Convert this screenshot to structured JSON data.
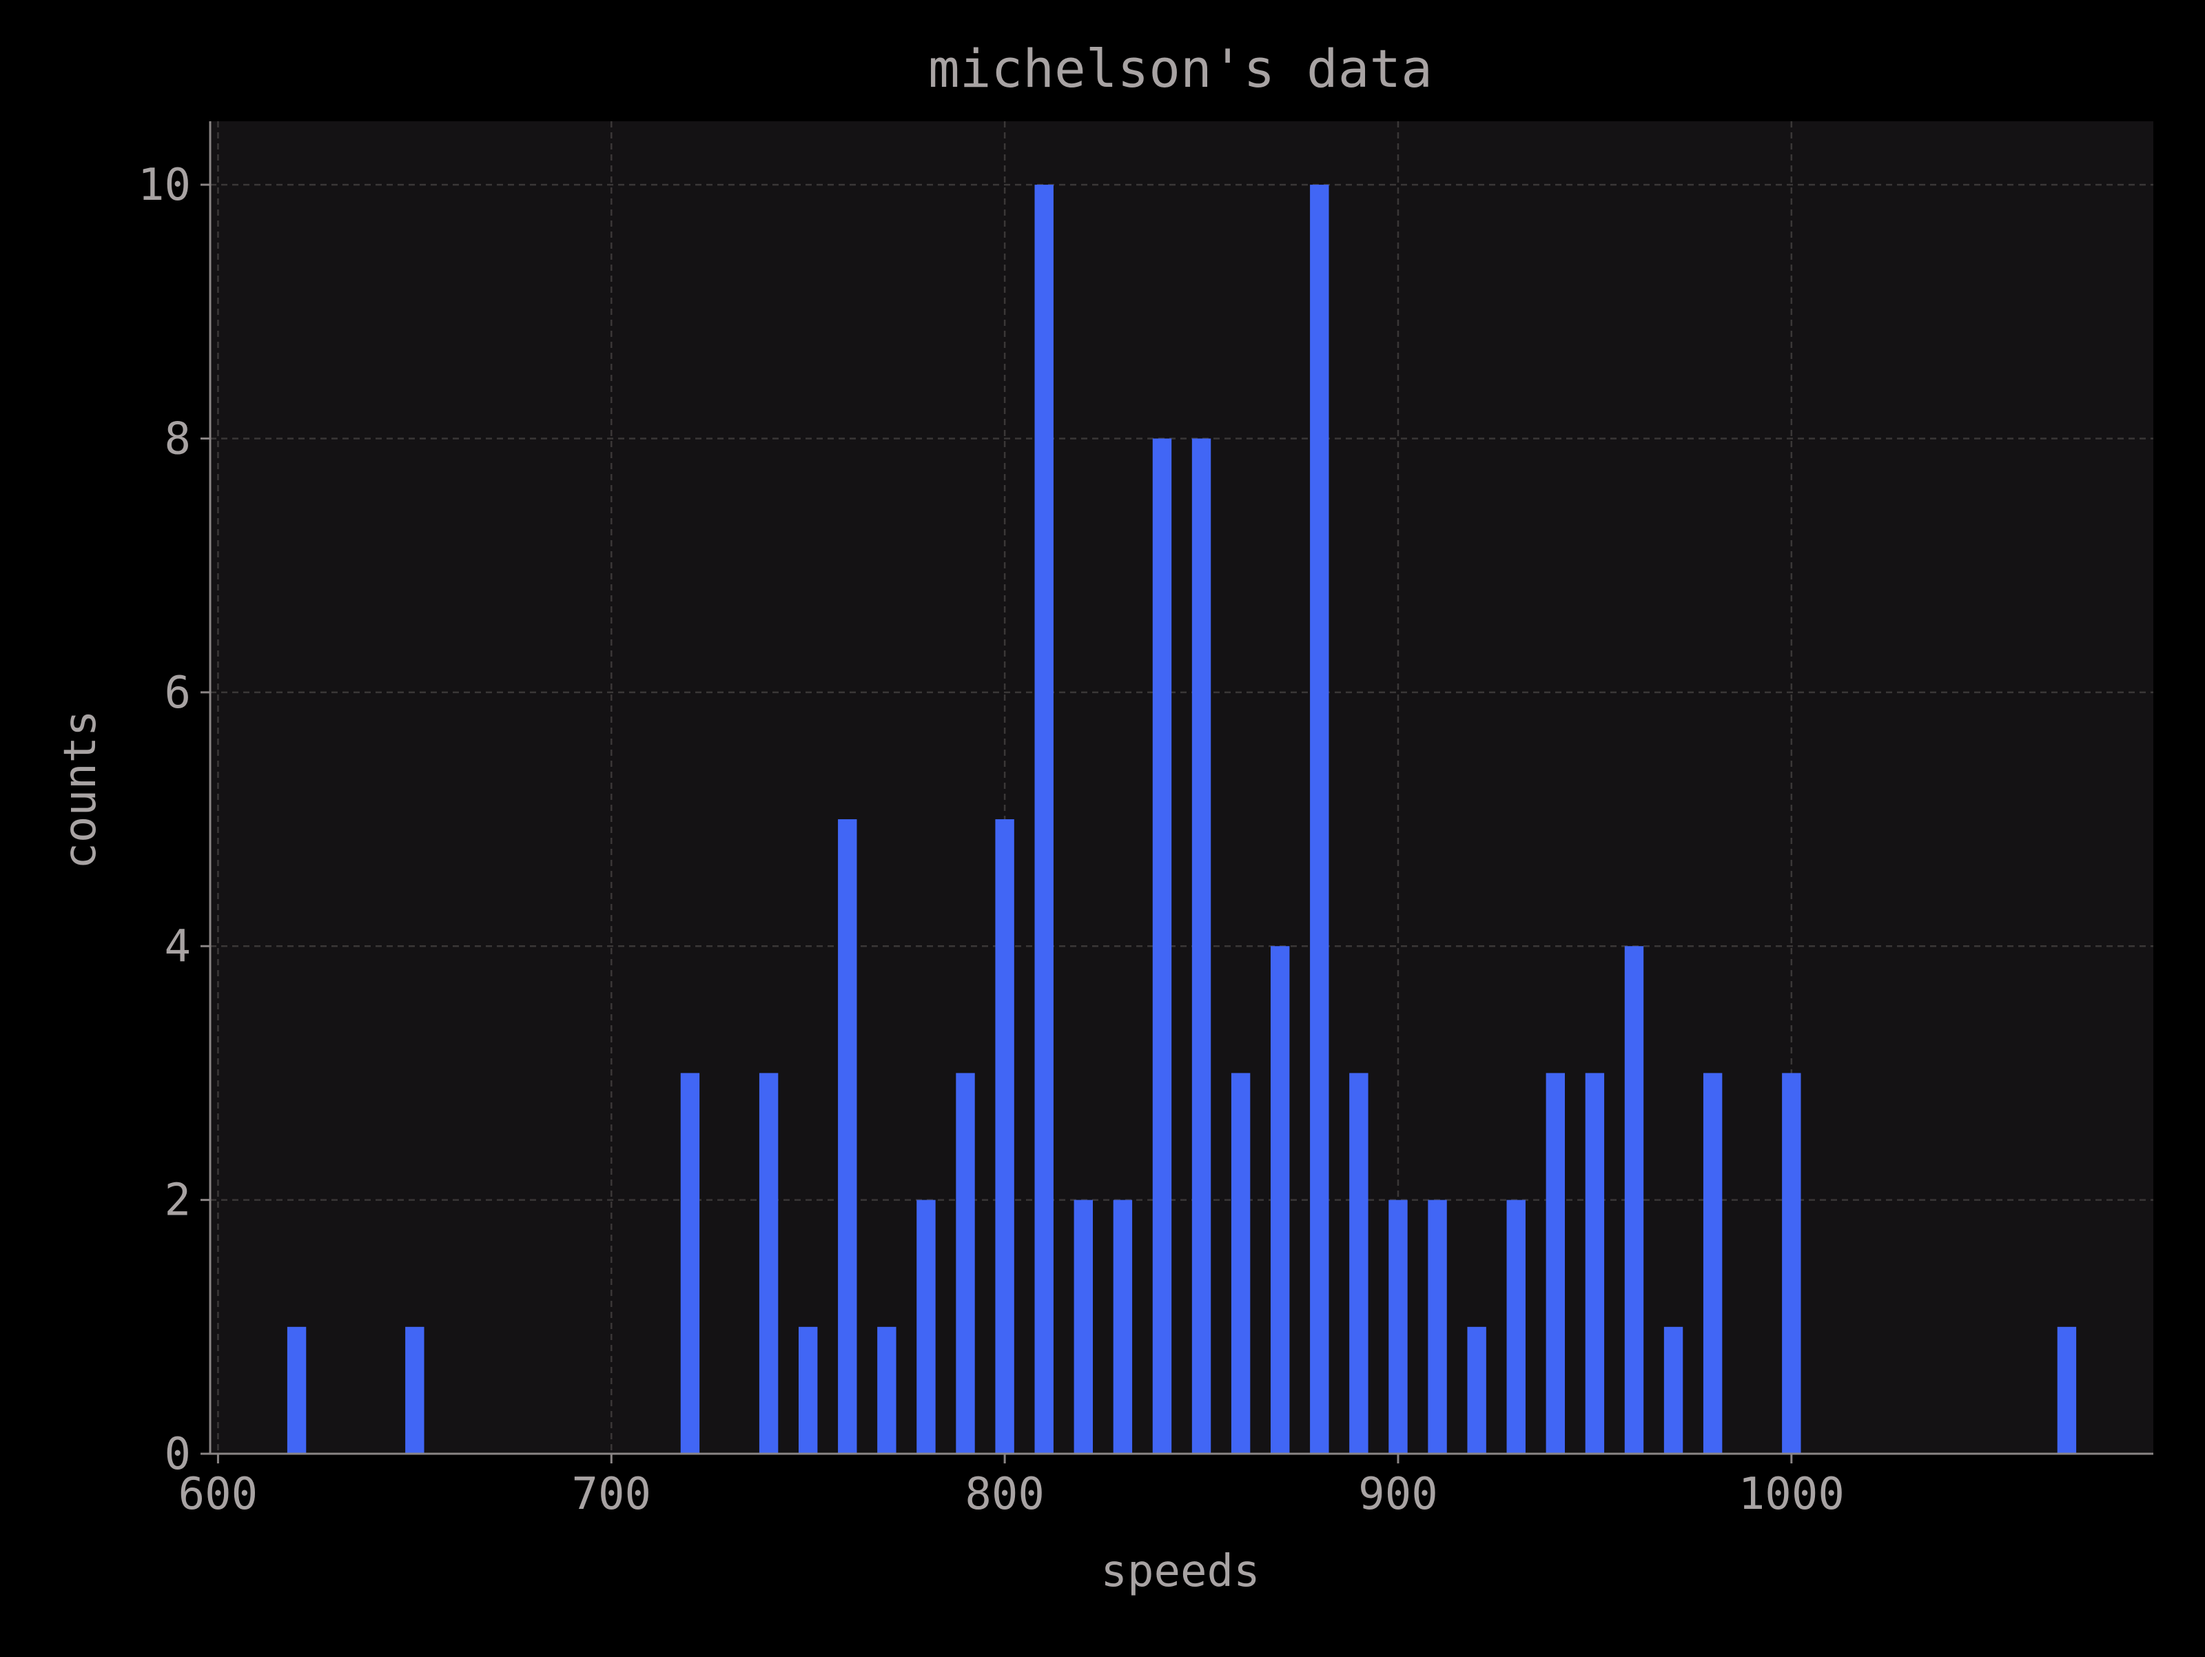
{
  "chart_data": {
    "type": "bar",
    "title": "michelson's data",
    "xlabel": "speeds",
    "ylabel": "counts",
    "xlim": [
      598,
      1092
    ],
    "ylim": [
      0,
      10.5
    ],
    "x_ticks": [
      600,
      700,
      800,
      900,
      1000
    ],
    "x_tick_labels": [
      "600",
      "700",
      "800",
      "900",
      "1000"
    ],
    "y_ticks": [
      0,
      2,
      4,
      6,
      8,
      10
    ],
    "y_tick_labels": [
      "0",
      "2",
      "4",
      "6",
      "8",
      "10"
    ],
    "grid": true,
    "x": [
      620,
      650,
      720,
      740,
      750,
      760,
      770,
      780,
      790,
      800,
      810,
      820,
      830,
      840,
      850,
      860,
      870,
      880,
      890,
      900,
      910,
      920,
      930,
      940,
      950,
      960,
      970,
      980,
      1000,
      1070
    ],
    "values": [
      1,
      1,
      3,
      3,
      1,
      5,
      1,
      2,
      3,
      5,
      10,
      2,
      2,
      8,
      8,
      3,
      4,
      10,
      3,
      2,
      2,
      1,
      2,
      3,
      3,
      4,
      1,
      3,
      3,
      1
    ]
  },
  "colors": {
    "background": "#000000",
    "plot_background": "#141214",
    "bar": "#4166f5",
    "text": "#a8a3a3",
    "axis": "#8a8585",
    "grid": "#3a3737"
  }
}
